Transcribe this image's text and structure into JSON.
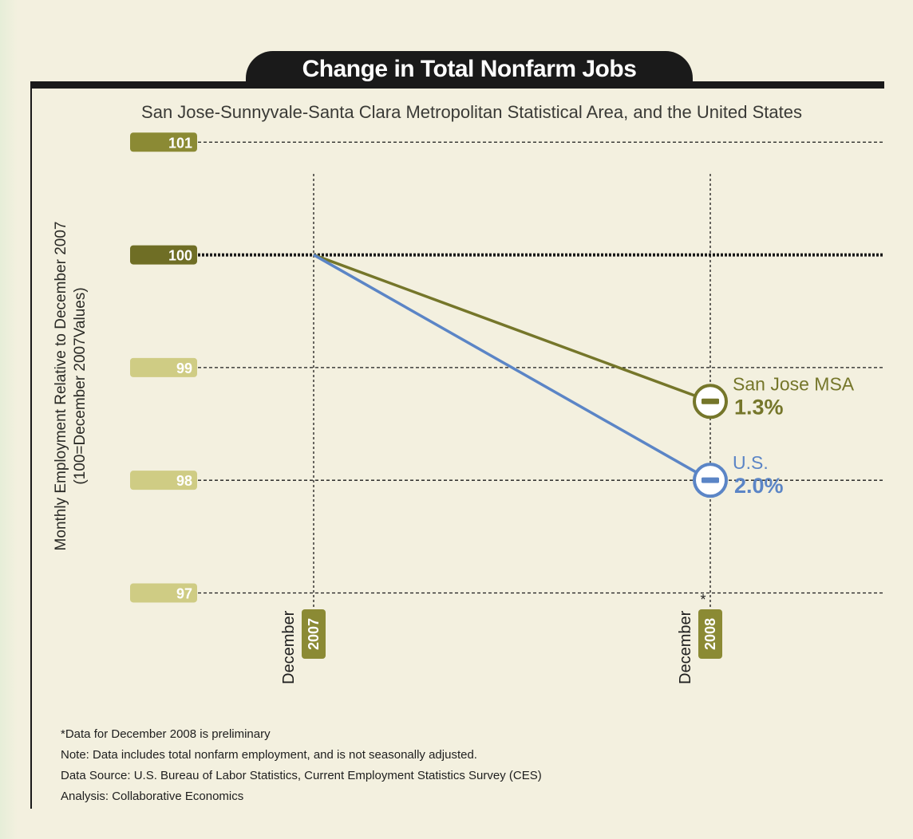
{
  "chart_data": {
    "type": "line",
    "title": "Change in Total Nonfarm Jobs",
    "subtitle": "San Jose-Sunnyvale-Santa Clara Metropolitan Statistical Area, and the United States",
    "ylabel_line1": "Monthly Employment Relative to December 2007",
    "ylabel_line2": "(100=December 2007Values)",
    "ylim": [
      96.6,
      101.2
    ],
    "yticks": [
      101,
      100,
      99,
      98,
      97
    ],
    "x_ticks": [
      {
        "month": "December",
        "year": "2007",
        "note": ""
      },
      {
        "month": "December",
        "year": "2008",
        "note": "*"
      }
    ],
    "series": [
      {
        "name": "San Jose MSA",
        "change_label": "1.3%",
        "color": "#75762a",
        "values": [
          100,
          98.7
        ]
      },
      {
        "name": "U.S.",
        "change_label": "2.0%",
        "color": "#5b85c6",
        "values": [
          100,
          98.0
        ]
      }
    ],
    "grid": true
  },
  "colors": {
    "tick_dark": "#6f6e25",
    "tick_mid": "#8b8a34",
    "tick_light": "#cfcc84",
    "title_bar": "#1a1a1a",
    "background": "#f3f0df"
  },
  "notes": [
    "*Data for December 2008 is preliminary",
    "Note: Data includes total nonfarm employment, and is not seasonally adjusted.",
    "Data Source: U.S. Bureau of Labor Statistics, Current Employment Statistics Survey (CES)",
    "Analysis: Collaborative Economics"
  ]
}
